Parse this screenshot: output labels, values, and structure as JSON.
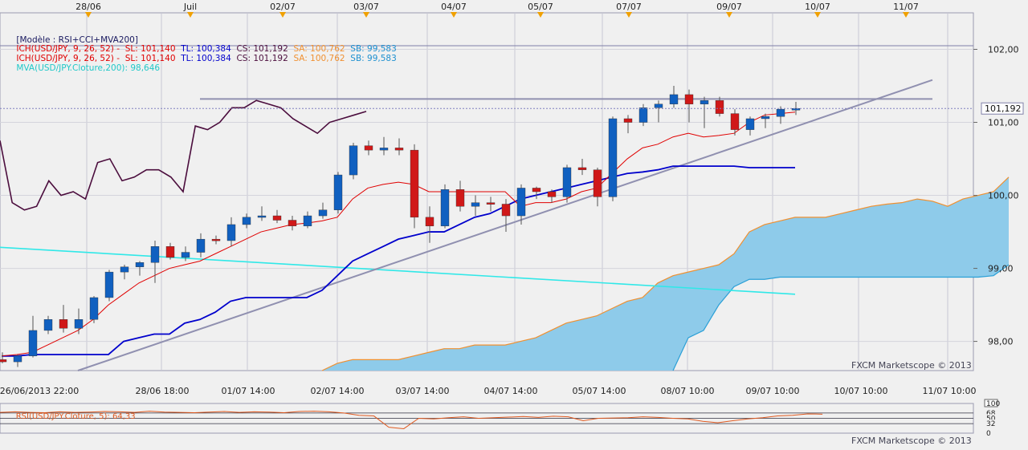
{
  "template_label": "[Modèle : RSI+CCI+MVA200]",
  "legend_lines": [
    {
      "ich": "ICH(USD/JPY, 9, 26, 52) -",
      "sl": "SL: 101,140",
      "tl": "TL: 100,384",
      "cs": "CS: 101,192",
      "sa": "SA: 100,762",
      "sb": "SB: 99,583"
    },
    {
      "ich": "ICH(USD/JPY, 9, 26, 52) -",
      "sl": "SL: 101,140",
      "tl": "TL: 100,384",
      "cs": "CS: 101,192",
      "sa": "SA: 100,762",
      "sb": "SB: 99,583"
    }
  ],
  "mva_label": "MVA(USD/JPY.Cloture,200): 98,646",
  "rsi_label": "RSI(USD/JPY.Cloture, 5): 64,33",
  "watermark": "FXCM Marketscope © 2013",
  "watermark_rsi": "FXCM Marketscope © 2013",
  "price_marker": "101,192",
  "colors": {
    "sl": "#e00000",
    "tl": "#0000cc",
    "cs": "#4b0d3d",
    "sa": "#f09030",
    "sb": "#2a9fd6",
    "mva": "#30e8e8",
    "bull": "#1060c0",
    "bear": "#d01818",
    "cloud": "#8ecbea",
    "trend": "#9090b0",
    "rsi": "#e05a20",
    "legend_sb": "#1e90d0",
    "legend_mva": "#20c8c8"
  },
  "chart_data": {
    "type": "candlestick",
    "symbol": "USD/JPY",
    "ylim": [
      97.6,
      102.5
    ],
    "x_slots": 67,
    "y_ticks": [
      "98,00",
      "99,00",
      "100,00",
      "101,00",
      "102,00"
    ],
    "top_date_labels": [
      "28/06",
      "Juil",
      "02/07",
      "03/07",
      "04/07",
      "05/07",
      "07/07",
      "09/07",
      "10/07",
      "11/07"
    ],
    "bottom_time_labels": [
      "26/06/2013 22:00",
      "28/06 18:00",
      "01/07 14:00",
      "02/07 14:00",
      "03/07 14:00",
      "04/07 14:00",
      "05/07 14:00",
      "08/07 10:00",
      "09/07 10:00",
      "10/07 10:00",
      "11/07 10:00"
    ],
    "candles": [
      [
        97.75,
        97.85,
        97.7,
        97.72
      ],
      [
        97.72,
        97.82,
        97.65,
        97.8
      ],
      [
        97.8,
        98.35,
        97.78,
        98.15
      ],
      [
        98.15,
        98.35,
        98.1,
        98.3
      ],
      [
        98.3,
        98.5,
        98.12,
        98.18
      ],
      [
        98.18,
        98.45,
        98.1,
        98.3
      ],
      [
        98.3,
        98.62,
        98.25,
        98.6
      ],
      [
        98.6,
        98.98,
        98.55,
        98.95
      ],
      [
        98.95,
        99.05,
        98.85,
        99.02
      ],
      [
        99.02,
        99.1,
        98.9,
        99.08
      ],
      [
        99.08,
        99.38,
        98.8,
        99.3
      ],
      [
        99.3,
        99.35,
        99.12,
        99.15
      ],
      [
        99.15,
        99.3,
        99.1,
        99.22
      ],
      [
        99.22,
        99.48,
        99.15,
        99.4
      ],
      [
        99.4,
        99.45,
        99.33,
        99.38
      ],
      [
        99.38,
        99.7,
        99.3,
        99.6
      ],
      [
        99.6,
        99.75,
        99.55,
        99.7
      ],
      [
        99.7,
        99.85,
        99.65,
        99.72
      ],
      [
        99.72,
        99.8,
        99.62,
        99.66
      ],
      [
        99.66,
        99.72,
        99.52,
        99.58
      ],
      [
        99.58,
        99.78,
        99.55,
        99.72
      ],
      [
        99.72,
        99.9,
        99.68,
        99.8
      ],
      [
        99.8,
        100.32,
        99.75,
        100.28
      ],
      [
        100.28,
        100.72,
        100.22,
        100.68
      ],
      [
        100.68,
        100.75,
        100.55,
        100.62
      ],
      [
        100.62,
        100.8,
        100.55,
        100.65
      ],
      [
        100.65,
        100.78,
        100.55,
        100.62
      ],
      [
        100.62,
        100.7,
        99.55,
        99.7
      ],
      [
        99.7,
        99.85,
        99.35,
        99.58
      ],
      [
        99.58,
        100.15,
        99.55,
        100.08
      ],
      [
        100.08,
        100.2,
        99.78,
        99.85
      ],
      [
        99.85,
        100.0,
        99.72,
        99.9
      ],
      [
        99.9,
        99.98,
        99.78,
        99.88
      ],
      [
        99.88,
        99.95,
        99.5,
        99.72
      ],
      [
        99.72,
        100.15,
        99.6,
        100.1
      ],
      [
        100.1,
        100.12,
        99.95,
        100.05
      ],
      [
        100.05,
        100.08,
        99.9,
        99.98
      ],
      [
        99.98,
        100.42,
        99.9,
        100.38
      ],
      [
        100.38,
        100.5,
        100.28,
        100.35
      ],
      [
        100.35,
        100.38,
        99.85,
        99.98
      ],
      [
        99.98,
        101.08,
        99.92,
        101.05
      ],
      [
        101.05,
        101.1,
        100.85,
        101.0
      ],
      [
        101.0,
        101.25,
        100.95,
        101.2
      ],
      [
        101.2,
        101.3,
        101.0,
        101.25
      ],
      [
        101.25,
        101.5,
        101.2,
        101.38
      ],
      [
        101.38,
        101.45,
        101.0,
        101.25
      ],
      [
        101.25,
        101.35,
        100.92,
        101.3
      ],
      [
        101.3,
        101.35,
        101.08,
        101.12
      ],
      [
        101.12,
        101.18,
        100.82,
        100.9
      ],
      [
        100.9,
        101.08,
        100.82,
        101.05
      ],
      [
        101.05,
        101.12,
        100.92,
        101.08
      ],
      [
        101.08,
        101.22,
        100.98,
        101.18
      ],
      [
        101.18,
        101.28,
        101.1,
        101.19
      ]
    ],
    "tenkan_sl": [
      97.8,
      97.82,
      97.85,
      97.95,
      98.05,
      98.15,
      98.3,
      98.5,
      98.65,
      98.8,
      98.9,
      99.0,
      99.05,
      99.1,
      99.2,
      99.3,
      99.4,
      99.5,
      99.55,
      99.6,
      99.62,
      99.65,
      99.7,
      99.95,
      100.1,
      100.15,
      100.18,
      100.15,
      100.05,
      100.05,
      100.05,
      100.05,
      100.05,
      100.05,
      99.85,
      99.9,
      99.9,
      99.95,
      100.05,
      100.1,
      100.3,
      100.5,
      100.65,
      100.7,
      100.8,
      100.85,
      100.8,
      100.82,
      100.85,
      101.0,
      101.1,
      101.12,
      101.14
    ],
    "kijun_tl": [
      97.8,
      97.8,
      97.82,
      97.82,
      97.82,
      97.82,
      97.82,
      97.82,
      98.0,
      98.05,
      98.1,
      98.1,
      98.25,
      98.3,
      98.4,
      98.55,
      98.6,
      98.6,
      98.6,
      98.6,
      98.6,
      98.7,
      98.9,
      99.1,
      99.2,
      99.3,
      99.4,
      99.45,
      99.5,
      99.5,
      99.6,
      99.7,
      99.75,
      99.85,
      99.95,
      100.0,
      100.05,
      100.1,
      100.15,
      100.2,
      100.25,
      100.3,
      100.32,
      100.35,
      100.4,
      100.4,
      100.4,
      100.4,
      100.4,
      100.38,
      100.38,
      100.38,
      100.38
    ],
    "chikou_cs": [
      100.75,
      99.9,
      99.8,
      99.85,
      100.2,
      100.0,
      100.05,
      99.95,
      100.45,
      100.5,
      100.2,
      100.25,
      100.35,
      100.35,
      100.25,
      100.05,
      100.95,
      100.9,
      101.0,
      101.2,
      101.2,
      101.3,
      101.25,
      101.2,
      101.05,
      100.95,
      100.85,
      101.0,
      101.05,
      101.1,
      101.15
    ],
    "senkou_a_sa": [
      [
        21,
        97.6
      ],
      [
        22,
        97.7
      ],
      [
        23,
        97.75
      ],
      [
        24,
        97.75
      ],
      [
        25,
        97.75
      ],
      [
        26,
        97.75
      ],
      [
        27,
        97.8
      ],
      [
        28,
        97.85
      ],
      [
        29,
        97.9
      ],
      [
        30,
        97.9
      ],
      [
        31,
        97.95
      ],
      [
        32,
        97.95
      ],
      [
        33,
        97.95
      ],
      [
        34,
        98.0
      ],
      [
        35,
        98.05
      ],
      [
        36,
        98.15
      ],
      [
        37,
        98.25
      ],
      [
        38,
        98.3
      ],
      [
        39,
        98.35
      ],
      [
        40,
        98.45
      ],
      [
        41,
        98.55
      ],
      [
        42,
        98.6
      ],
      [
        43,
        98.8
      ],
      [
        44,
        98.9
      ],
      [
        45,
        98.95
      ],
      [
        46,
        99.0
      ],
      [
        47,
        99.05
      ],
      [
        48,
        99.2
      ],
      [
        49,
        99.5
      ],
      [
        50,
        99.6
      ],
      [
        51,
        99.65
      ],
      [
        52,
        99.7
      ],
      [
        53,
        99.7
      ],
      [
        54,
        99.7
      ],
      [
        55,
        99.75
      ],
      [
        56,
        99.8
      ],
      [
        57,
        99.85
      ],
      [
        58,
        99.88
      ],
      [
        59,
        99.9
      ],
      [
        60,
        99.95
      ],
      [
        61,
        99.92
      ],
      [
        62,
        99.85
      ],
      [
        63,
        99.95
      ],
      [
        64,
        100.0
      ],
      [
        65,
        100.05
      ],
      [
        66,
        100.25
      ]
    ],
    "senkou_b_sb": [
      [
        44,
        97.6
      ],
      [
        45,
        98.05
      ],
      [
        46,
        98.15
      ],
      [
        47,
        98.5
      ],
      [
        48,
        98.75
      ],
      [
        49,
        98.85
      ],
      [
        50,
        98.85
      ],
      [
        51,
        98.88
      ],
      [
        52,
        98.88
      ],
      [
        53,
        98.88
      ],
      [
        54,
        98.88
      ],
      [
        55,
        98.88
      ],
      [
        56,
        98.88
      ],
      [
        57,
        98.88
      ],
      [
        58,
        98.88
      ],
      [
        59,
        98.88
      ],
      [
        60,
        98.88
      ],
      [
        61,
        98.88
      ],
      [
        62,
        98.88
      ],
      [
        63,
        98.88
      ],
      [
        64,
        98.88
      ],
      [
        65,
        98.9
      ],
      [
        66,
        99.05
      ]
    ],
    "mva200": [
      [
        -1,
        99.3
      ],
      [
        52,
        98.646
      ]
    ],
    "trendline_support": [
      [
        5,
        97.6
      ],
      [
        61,
        101.58
      ]
    ],
    "resistance_hline": [
      [
        13,
        101.32
      ],
      [
        61,
        101.32
      ]
    ],
    "hline_102": 102.05,
    "rsi_ylim": [
      0,
      100
    ],
    "rsi_levels": [
      "100",
      "68",
      "50",
      "32",
      "0"
    ],
    "rsi_values": [
      70,
      72,
      70,
      69,
      72,
      70,
      71,
      73,
      72,
      70,
      74,
      71,
      70,
      69,
      71,
      73,
      70,
      72,
      71,
      69,
      73,
      74,
      72,
      68,
      60,
      58,
      20,
      15,
      50,
      48,
      52,
      55,
      50,
      52,
      54,
      56,
      53,
      57,
      55,
      42,
      50,
      51,
      52,
      55,
      53,
      50,
      48,
      40,
      35,
      42,
      48,
      52,
      58,
      60,
      65,
      64
    ]
  }
}
